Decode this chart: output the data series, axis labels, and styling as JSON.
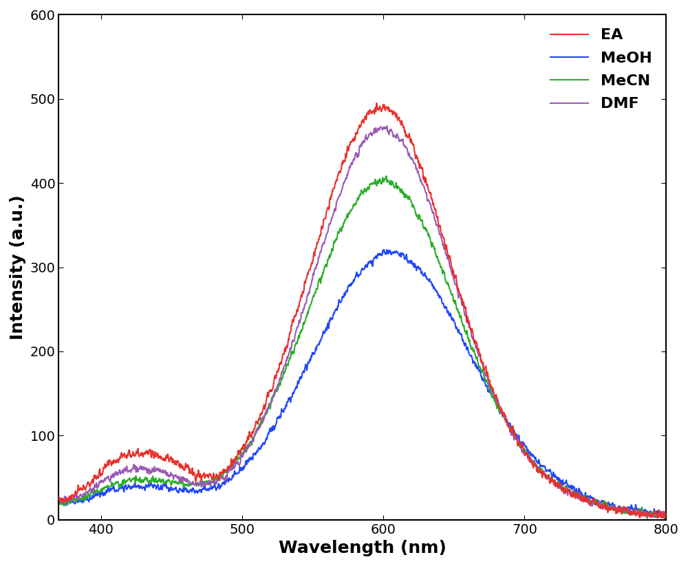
{
  "title": "",
  "xlabel": "Wavelength (nm)",
  "ylabel": "Intensity (a.u.)",
  "xlim": [
    370,
    800
  ],
  "ylim": [
    0,
    600
  ],
  "xticks": [
    400,
    500,
    600,
    700,
    800
  ],
  "yticks": [
    0,
    100,
    200,
    300,
    400,
    500,
    600
  ],
  "series": {
    "EA": {
      "color": "#e8302a",
      "linewidth": 1.5
    },
    "MeOH": {
      "color": "#1f45fc",
      "linewidth": 1.5
    },
    "MeCN": {
      "color": "#2aad27",
      "linewidth": 1.5
    },
    "DMF": {
      "color": "#9b59b6",
      "linewidth": 1.5
    }
  },
  "legend_fontsize": 16,
  "legend_fontweight": "bold",
  "axis_label_fontsize": 18,
  "axis_label_fontweight": "bold",
  "tick_fontsize": 14,
  "background_color": "#ffffff"
}
